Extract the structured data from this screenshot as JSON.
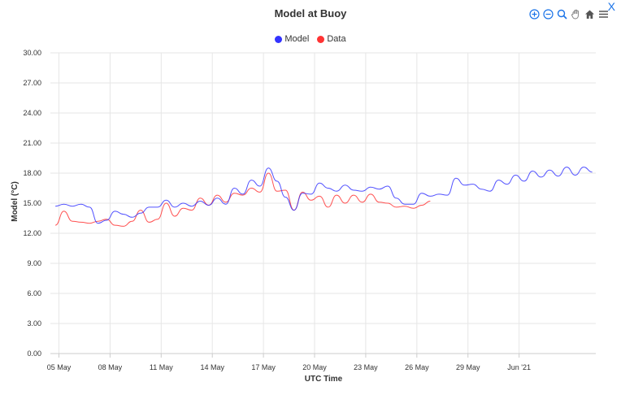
{
  "window": {
    "close_label": "X"
  },
  "toolbar": {
    "icons": [
      "zoom-in-icon",
      "zoom-out-icon",
      "zoom-select-icon",
      "pan-hand-icon",
      "home-icon",
      "menu-icon"
    ]
  },
  "colors": {
    "model": "#3333ff",
    "data": "#ff3333",
    "grid": "#e6e6e6",
    "toolbar": "#1a73e8"
  },
  "chart_data": {
    "type": "line",
    "title": "Model at Buoy",
    "xlabel": "UTC Time",
    "ylabel": "Model (°C)",
    "legend_position": "top-center",
    "grid": true,
    "ylim": [
      0,
      30
    ],
    "xlim": [
      "2021-05-04 12:00",
      "2021-06-05 12:00"
    ],
    "yticks": [
      "0.00",
      "3.00",
      "6.00",
      "9.00",
      "12.00",
      "15.00",
      "18.00",
      "21.00",
      "24.00",
      "27.00",
      "30.00"
    ],
    "xticks": [
      {
        "date": "2021-05-05",
        "label": "05 May"
      },
      {
        "date": "2021-05-08",
        "label": "08 May"
      },
      {
        "date": "2021-05-11",
        "label": "11 May"
      },
      {
        "date": "2021-05-14",
        "label": "14 May"
      },
      {
        "date": "2021-05-17",
        "label": "17 May"
      },
      {
        "date": "2021-05-20",
        "label": "20 May"
      },
      {
        "date": "2021-05-23",
        "label": "23 May"
      },
      {
        "date": "2021-05-26",
        "label": "26 May"
      },
      {
        "date": "2021-05-29",
        "label": "29 May"
      },
      {
        "date": "2021-06-01",
        "label": "Jun '21"
      }
    ],
    "series": [
      {
        "name": "Model",
        "color": "#3333ff",
        "x": [
          "2021-05-04 19:00",
          "2021-05-05 07:00",
          "2021-05-05 19:00",
          "2021-05-06 07:00",
          "2021-05-06 19:00",
          "2021-05-07 07:00",
          "2021-05-07 19:00",
          "2021-05-08 07:00",
          "2021-05-08 19:00",
          "2021-05-09 07:00",
          "2021-05-09 19:00",
          "2021-05-10 07:00",
          "2021-05-10 19:00",
          "2021-05-11 07:00",
          "2021-05-11 19:00",
          "2021-05-12 07:00",
          "2021-05-12 19:00",
          "2021-05-13 07:00",
          "2021-05-13 19:00",
          "2021-05-14 07:00",
          "2021-05-14 19:00",
          "2021-05-15 07:00",
          "2021-05-15 19:00",
          "2021-05-16 07:00",
          "2021-05-16 19:00",
          "2021-05-17 07:00",
          "2021-05-17 19:00",
          "2021-05-18 07:00",
          "2021-05-18 19:00",
          "2021-05-19 07:00",
          "2021-05-19 19:00",
          "2021-05-20 07:00",
          "2021-05-20 19:00",
          "2021-05-21 07:00",
          "2021-05-21 19:00",
          "2021-05-22 07:00",
          "2021-05-22 19:00",
          "2021-05-23 07:00",
          "2021-05-23 19:00",
          "2021-05-24 07:00",
          "2021-05-24 19:00",
          "2021-05-25 07:00",
          "2021-05-25 19:00",
          "2021-05-26 07:00",
          "2021-05-26 19:00",
          "2021-05-27 07:00",
          "2021-05-27 19:00",
          "2021-05-28 07:00",
          "2021-05-28 19:00",
          "2021-05-29 07:00",
          "2021-05-29 19:00",
          "2021-05-30 07:00",
          "2021-05-30 19:00",
          "2021-05-31 07:00",
          "2021-05-31 19:00",
          "2021-06-01 07:00",
          "2021-06-01 19:00",
          "2021-06-02 07:00",
          "2021-06-02 19:00",
          "2021-06-03 07:00",
          "2021-06-03 19:00",
          "2021-06-04 07:00",
          "2021-06-04 19:00",
          "2021-06-05 07:00"
        ],
        "values": [
          14.7,
          14.9,
          14.7,
          14.9,
          14.6,
          13.0,
          13.3,
          14.2,
          13.9,
          13.6,
          14.0,
          14.6,
          14.6,
          15.3,
          14.6,
          15.0,
          14.7,
          15.2,
          14.8,
          15.5,
          14.9,
          16.5,
          15.9,
          17.3,
          16.7,
          18.5,
          17.2,
          15.6,
          14.3,
          16.0,
          15.9,
          17.0,
          16.5,
          16.2,
          16.8,
          16.3,
          16.2,
          16.6,
          16.4,
          16.7,
          15.5,
          14.9,
          14.9,
          16.0,
          15.7,
          15.9,
          15.8,
          17.5,
          16.8,
          16.9,
          16.4,
          16.2,
          17.3,
          16.9,
          17.8,
          17.2,
          18.2,
          17.6,
          18.3,
          17.7,
          18.6,
          17.8,
          18.6,
          18.1
        ]
      },
      {
        "name": "Data",
        "color": "#ff3333",
        "x": [
          "2021-05-04 19:00",
          "2021-05-05 07:00",
          "2021-05-05 19:00",
          "2021-05-06 07:00",
          "2021-05-06 19:00",
          "2021-05-07 07:00",
          "2021-05-07 19:00",
          "2021-05-08 07:00",
          "2021-05-08 19:00",
          "2021-05-09 07:00",
          "2021-05-09 19:00",
          "2021-05-10 07:00",
          "2021-05-10 19:00",
          "2021-05-11 07:00",
          "2021-05-11 19:00",
          "2021-05-12 07:00",
          "2021-05-12 19:00",
          "2021-05-13 07:00",
          "2021-05-13 19:00",
          "2021-05-14 07:00",
          "2021-05-14 19:00",
          "2021-05-15 07:00",
          "2021-05-15 19:00",
          "2021-05-16 07:00",
          "2021-05-16 19:00",
          "2021-05-17 07:00",
          "2021-05-17 19:00",
          "2021-05-18 07:00",
          "2021-05-18 19:00",
          "2021-05-19 07:00",
          "2021-05-19 19:00",
          "2021-05-20 07:00",
          "2021-05-20 19:00",
          "2021-05-21 07:00",
          "2021-05-21 19:00",
          "2021-05-22 07:00",
          "2021-05-22 19:00",
          "2021-05-23 07:00",
          "2021-05-23 19:00",
          "2021-05-24 07:00",
          "2021-05-24 19:00",
          "2021-05-25 07:00",
          "2021-05-25 19:00",
          "2021-05-26 07:00",
          "2021-05-26 19:00"
        ],
        "values": [
          12.8,
          14.2,
          13.2,
          13.1,
          13.0,
          13.2,
          13.4,
          12.8,
          12.7,
          13.2,
          14.3,
          13.1,
          13.4,
          15.0,
          13.7,
          14.5,
          14.3,
          15.5,
          14.8,
          15.8,
          15.1,
          16.0,
          15.8,
          16.5,
          16.1,
          18.0,
          16.2,
          16.3,
          14.3,
          16.1,
          15.3,
          15.7,
          14.6,
          15.8,
          15.0,
          15.8,
          15.1,
          15.9,
          15.1,
          15.0,
          14.6,
          14.7,
          14.5,
          14.8,
          15.2
        ]
      }
    ]
  }
}
